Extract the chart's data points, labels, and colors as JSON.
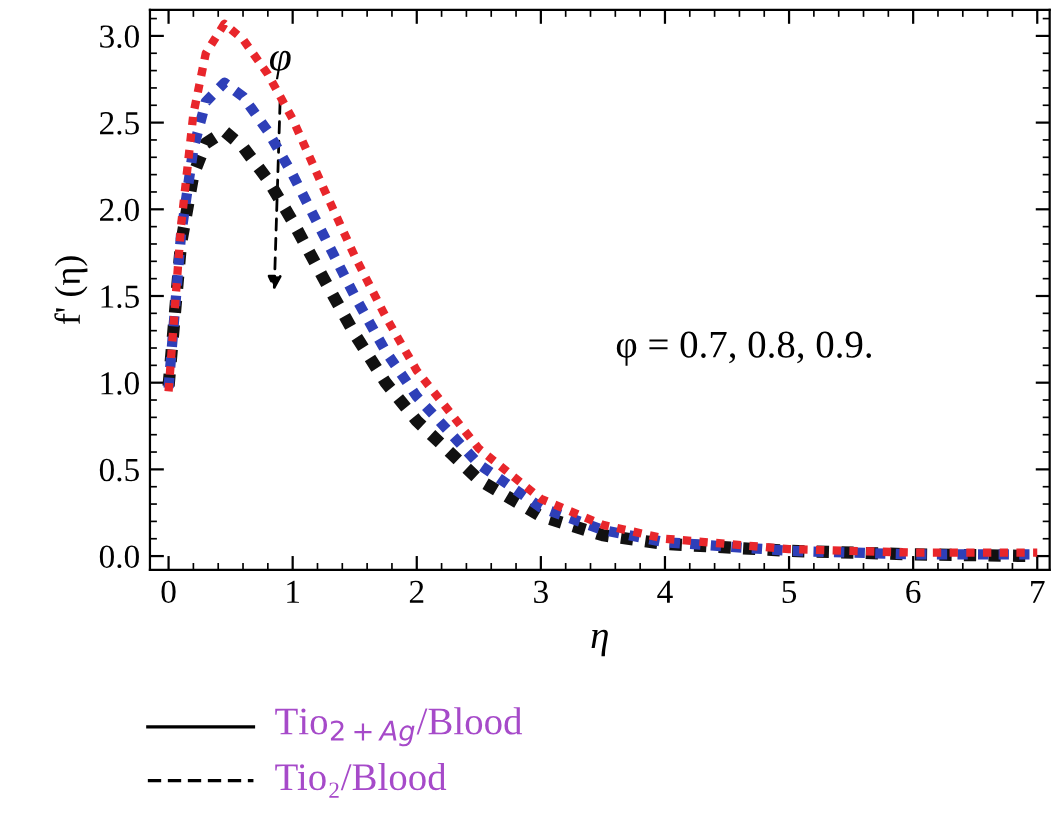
{
  "chart_data": {
    "type": "line",
    "xlabel": "η",
    "ylabel": "f' (η)",
    "x": [
      0,
      0.1,
      0.2,
      0.3,
      0.45,
      0.6,
      0.8,
      1.0,
      1.25,
      1.5,
      1.75,
      2,
      2.5,
      3,
      3.5,
      4,
      5,
      6,
      7
    ],
    "series": [
      {
        "color": "#e8262b",
        "values": [
          0.95,
          1.9,
          2.55,
          2.9,
          3.07,
          2.98,
          2.78,
          2.52,
          2.12,
          1.73,
          1.38,
          1.07,
          0.62,
          0.33,
          0.18,
          0.1,
          0.04,
          0.02,
          0.02
        ]
      },
      {
        "color": "#2e3fb8",
        "values": [
          0.97,
          1.85,
          2.35,
          2.62,
          2.73,
          2.65,
          2.45,
          2.2,
          1.85,
          1.5,
          1.18,
          0.92,
          0.53,
          0.28,
          0.15,
          0.08,
          0.03,
          0.01,
          0.01
        ]
      },
      {
        "color": "#111111",
        "values": [
          0.98,
          1.8,
          2.2,
          2.38,
          2.45,
          2.36,
          2.17,
          1.93,
          1.6,
          1.28,
          1.0,
          0.78,
          0.44,
          0.23,
          0.12,
          0.07,
          0.03,
          0.01,
          0.0
        ]
      }
    ],
    "line_style": "dotted",
    "xlim": [
      -0.15,
      7.1
    ],
    "ylim": [
      -0.08,
      3.15
    ],
    "xticks": [
      0,
      1,
      2,
      3,
      4,
      5,
      6,
      7
    ],
    "yticks": [
      {
        "value": 0,
        "label": "0.0"
      },
      {
        "value": 0.5,
        "label": "0.5"
      },
      {
        "value": 1,
        "label": "1.0"
      },
      {
        "value": 1.5,
        "label": "1.5"
      },
      {
        "value": 2,
        "label": "2.0"
      },
      {
        "value": 2.5,
        "label": "2.5"
      },
      {
        "value": 3,
        "label": "3.0"
      }
    ],
    "grid": false,
    "annotations": [
      {
        "text": "φ",
        "x": 0.9,
        "y": 2.75
      },
      "φ = 0.7, 0.8, 0.9.",
      "Tio$_{2+Ag}$/Blood",
      "Tio₂/Blood"
    ]
  }
}
